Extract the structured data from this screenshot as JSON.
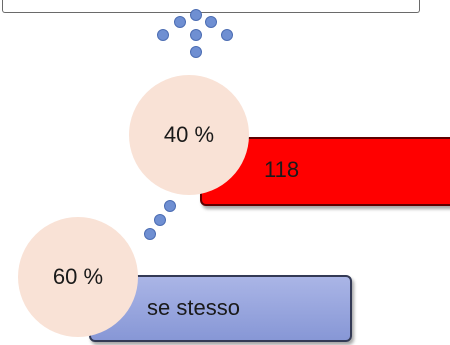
{
  "diagram": {
    "circles": [
      {
        "label": "40 %",
        "value": 40
      },
      {
        "label": "60 %",
        "value": 60
      }
    ],
    "bars": [
      {
        "label": "118",
        "color": "#ff0000"
      },
      {
        "label": "se stesso",
        "color": "#8797d6"
      }
    ],
    "colors": {
      "circle_fill": "#f9e2d6",
      "dot_fill": "#6f8fd2"
    }
  }
}
